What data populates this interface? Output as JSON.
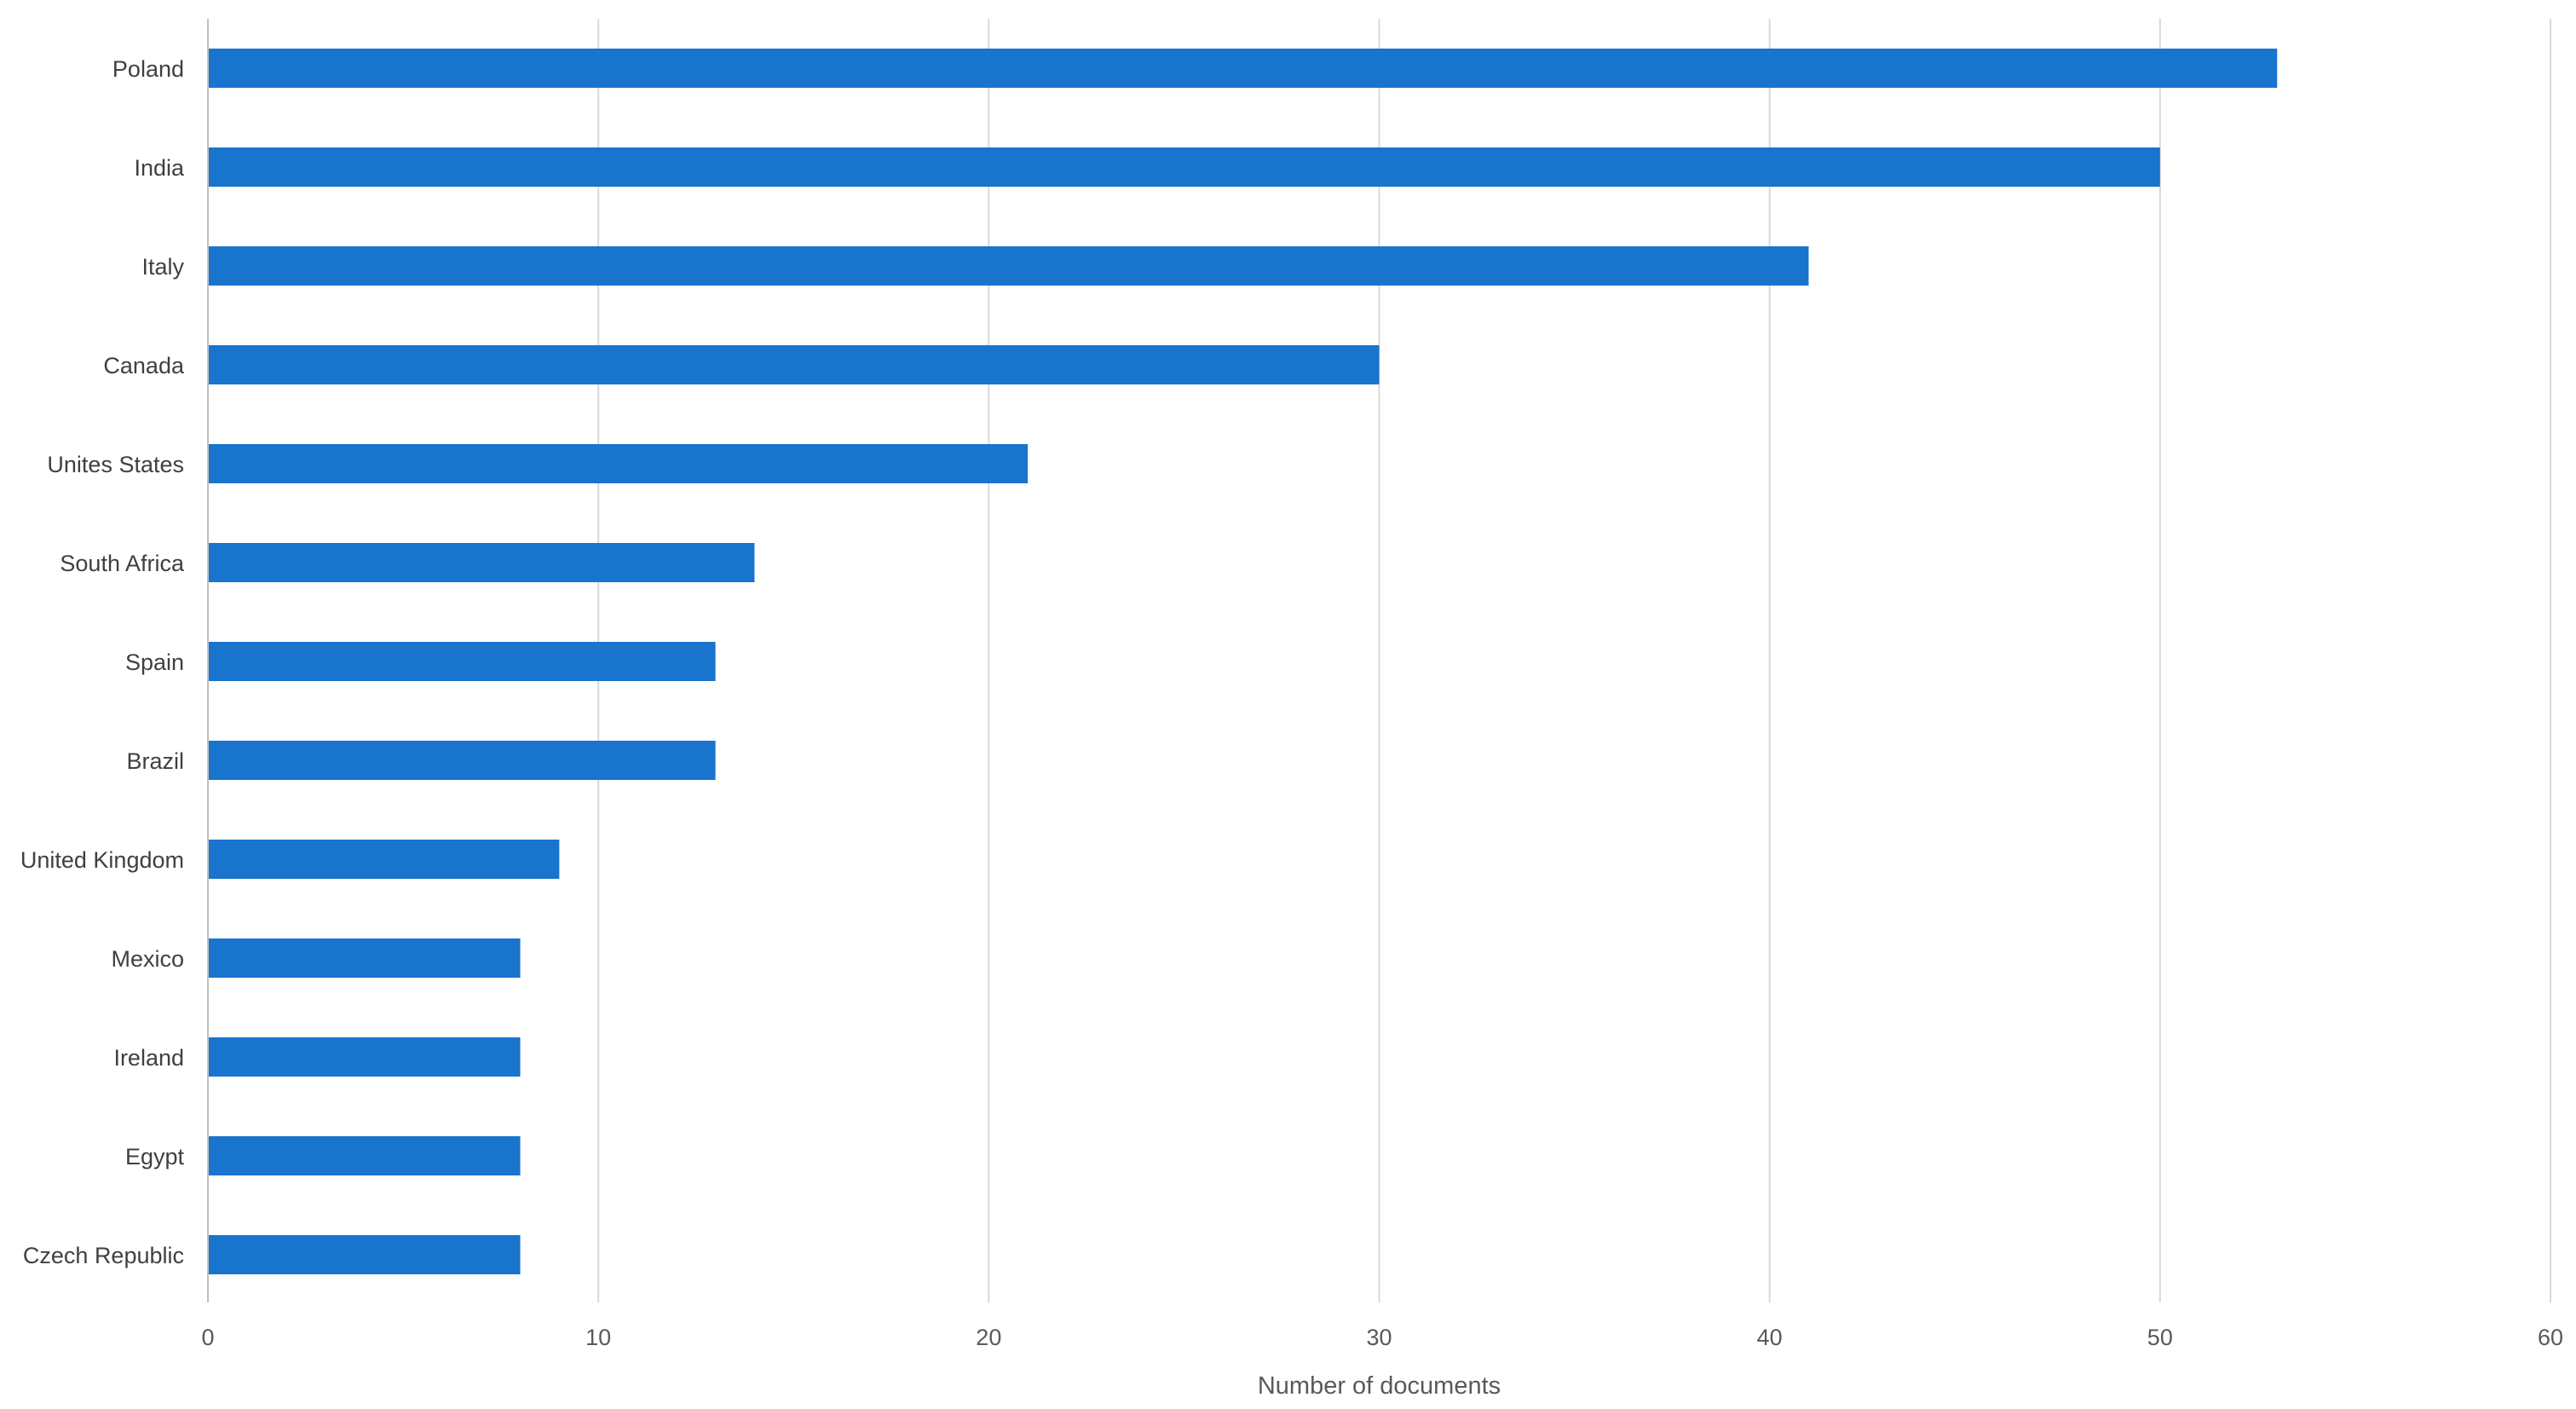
{
  "chart_data": {
    "type": "bar",
    "orientation": "horizontal",
    "title": "",
    "xlabel": "Number of documents",
    "ylabel": "",
    "categories": [
      "Poland",
      "India",
      "Italy",
      "Canada",
      "Unites States",
      "South Africa",
      "Spain",
      "Brazil",
      "United Kingdom",
      "Mexico",
      "Ireland",
      "Egypt",
      "Czech Republic"
    ],
    "values": [
      53,
      50,
      41,
      30,
      21,
      14,
      13,
      13,
      9,
      8,
      8,
      8,
      8
    ],
    "xlim": [
      0,
      60
    ],
    "xticks": [
      0,
      10,
      20,
      30,
      40,
      50,
      60
    ],
    "grid": true,
    "legend": "none",
    "colors": {
      "bar": "#1874CD",
      "grid": "#D9D9D9",
      "axis": "#BFBFBF"
    }
  }
}
